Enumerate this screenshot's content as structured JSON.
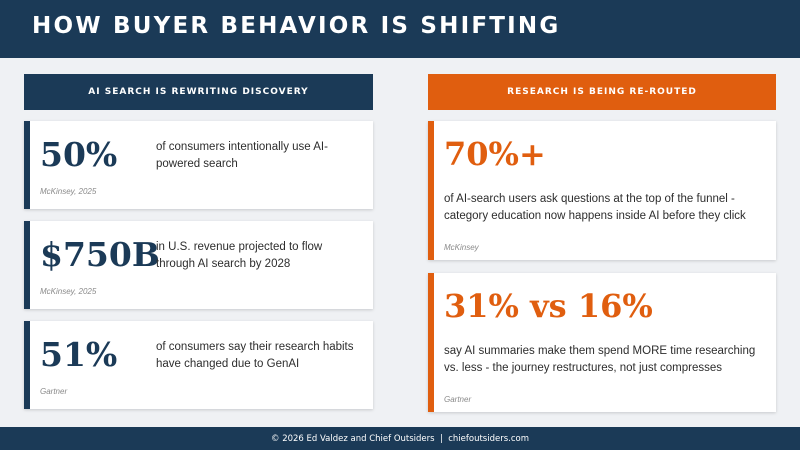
{
  "title": "HOW BUYER BEHAVIOR IS SHIFTING",
  "left_section": {
    "header": "AI SEARCH IS REWRITING DISCOVERY",
    "cards": [
      {
        "stat": "50%",
        "description": "of consumers intentionally use AI-powered search",
        "source": "McKinsey, 2025"
      },
      {
        "stat": "$750B",
        "description": "in U.S. revenue projected to flow through AI search by 2028",
        "source": "McKinsey, 2025"
      },
      {
        "stat": "51%",
        "description": "of consumers say their research habits have changed due to GenAI",
        "source": "Gartner"
      }
    ]
  },
  "right_section": {
    "header": "RESEARCH IS BEING RE-ROUTED",
    "cards": [
      {
        "stat": "70%+",
        "description": "of AI-search users ask questions at the top of the funnel - category education now happens inside AI before they click",
        "source": "McKinsey"
      },
      {
        "stat": "31% vs 16%",
        "description": "say AI summaries make them spend MORE time researching vs. less - the journey restructures, not just compresses",
        "source": "Gartner"
      }
    ]
  },
  "footer": "© 2026 Ed Valdez and Chief Outsiders  |  chiefoutsiders.com",
  "colors": {
    "navy": "#1b3a57",
    "orange": "#e05e0f",
    "background": "#eff1f4"
  }
}
